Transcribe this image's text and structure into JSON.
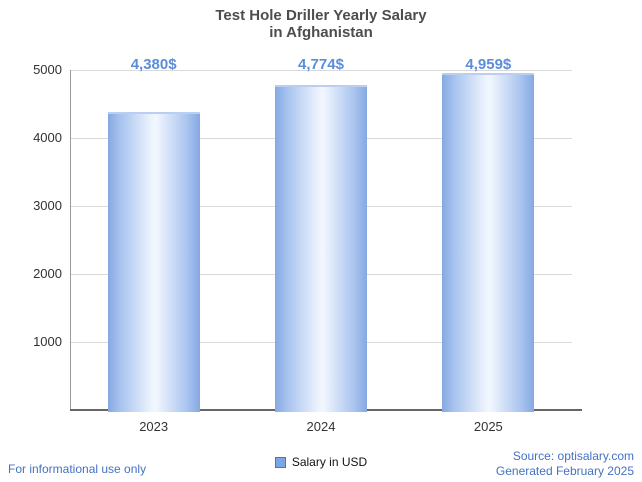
{
  "chart_data": {
    "type": "bar",
    "title_line1": "Test Hole Driller Yearly Salary",
    "title_line2": "in Afghanistan",
    "categories": [
      "2023",
      "2024",
      "2025"
    ],
    "values": [
      4380,
      4774,
      4959
    ],
    "value_labels": [
      "4,380$",
      "4,774$",
      "4,959$"
    ],
    "series": [
      {
        "name": "Salary in USD",
        "values": [
          4380,
          4774,
          4959
        ]
      }
    ],
    "ylim": [
      0,
      5000
    ],
    "yticks": [
      1000,
      2000,
      3000,
      4000,
      5000
    ],
    "grid": true,
    "legend_position": "bottom",
    "xlabel": "",
    "ylabel": ""
  },
  "legend": {
    "salary_label": "Salary in USD"
  },
  "footer": {
    "left_note": "For informational use only",
    "source": "Source: optisalary.com",
    "generated": "Generated February 2025"
  },
  "colors": {
    "label_blue": "#5b8dd9",
    "footer_blue": "#4472c4",
    "bar_edge": "#86a8e2",
    "bar_center": "#f2f7fe",
    "title_gray": "#4d4d4d",
    "grid_gray": "#d9d9d9"
  }
}
